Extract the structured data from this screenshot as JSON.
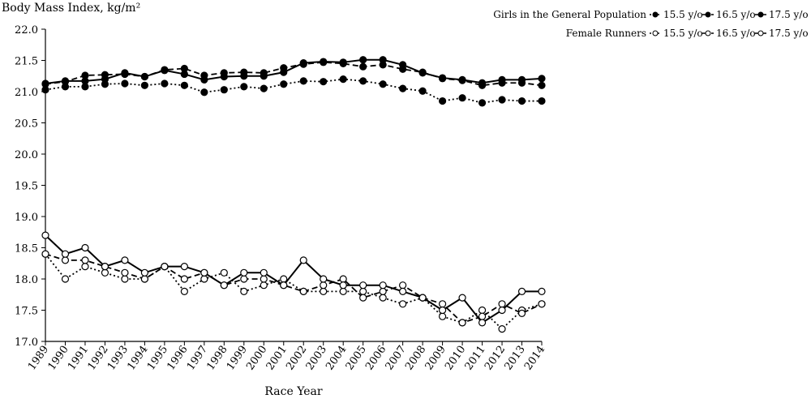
{
  "chart_data": {
    "type": "line",
    "title": "",
    "ylabel": "Body Mass Index, kg/m²",
    "xlabel": "Race Year",
    "ylim": [
      17.0,
      22.0
    ],
    "yticks": [
      "17.0",
      "17.5",
      "18.0",
      "18.5",
      "19.0",
      "19.5",
      "20.0",
      "20.5",
      "21.0",
      "21.5",
      "22.0"
    ],
    "x": [
      "1989",
      "1990",
      "1991",
      "1992",
      "1993",
      "1994",
      "1995",
      "1996",
      "1997",
      "1998",
      "1999",
      "2000",
      "2001",
      "2002",
      "2003",
      "2004",
      "2005",
      "2006",
      "2007",
      "2008",
      "2009",
      "2010",
      "2011",
      "2012",
      "2013",
      "2014"
    ],
    "grid": false,
    "legend_position": "top-right",
    "legend_groups": [
      "Girls in the General Population",
      "Female Runners"
    ],
    "legend_items": [
      "15.5 y/o",
      "16.5 y/o",
      "17.5 y/o"
    ],
    "series": [
      {
        "group": "Girls in the General Population",
        "age": "15.5 y/o",
        "style": "dotted",
        "marker": "filled",
        "values": [
          21.03,
          21.08,
          21.08,
          21.12,
          21.13,
          21.1,
          21.13,
          21.1,
          20.99,
          21.03,
          21.08,
          21.05,
          21.12,
          21.17,
          21.16,
          21.2,
          21.17,
          21.12,
          21.05,
          21.01,
          20.85,
          20.9,
          20.82,
          20.87,
          20.85,
          20.85
        ]
      },
      {
        "group": "Girls in the General Population",
        "age": "16.5 y/o",
        "style": "dashed",
        "marker": "filled",
        "values": [
          21.12,
          21.16,
          21.26,
          21.27,
          21.28,
          21.24,
          21.35,
          21.37,
          21.26,
          21.3,
          21.31,
          21.3,
          21.38,
          21.44,
          21.47,
          21.45,
          21.4,
          21.43,
          21.36,
          21.31,
          21.21,
          21.18,
          21.1,
          21.14,
          21.14,
          21.1
        ]
      },
      {
        "group": "Girls in the General Population",
        "age": "17.5 y/o",
        "style": "solid",
        "marker": "filled",
        "values": [
          21.13,
          21.17,
          21.17,
          21.2,
          21.3,
          21.24,
          21.34,
          21.28,
          21.19,
          21.24,
          21.25,
          21.25,
          21.31,
          21.46,
          21.48,
          21.47,
          21.51,
          21.51,
          21.43,
          21.3,
          21.22,
          21.19,
          21.14,
          21.19,
          21.19,
          21.21
        ]
      },
      {
        "group": "Female Runners",
        "age": "15.5 y/o",
        "style": "dotted",
        "marker": "open",
        "values": [
          18.4,
          18.0,
          18.2,
          18.1,
          18.0,
          18.0,
          18.2,
          17.8,
          18.0,
          18.1,
          17.8,
          17.9,
          18.0,
          17.8,
          17.8,
          17.8,
          17.8,
          17.7,
          17.6,
          17.7,
          17.4,
          17.3,
          17.5,
          17.2,
          17.5,
          17.6
        ]
      },
      {
        "group": "Female Runners",
        "age": "16.5 y/o",
        "style": "dashed",
        "marker": "open",
        "values": [
          18.4,
          18.3,
          18.3,
          18.2,
          18.1,
          18.0,
          18.2,
          18.0,
          18.1,
          17.9,
          18.0,
          18.0,
          17.9,
          17.8,
          17.9,
          18.0,
          17.7,
          17.8,
          17.9,
          17.7,
          17.6,
          17.3,
          17.4,
          17.6,
          17.45,
          17.6
        ]
      },
      {
        "group": "Female Runners",
        "age": "17.5 y/o",
        "style": "solid",
        "marker": "open",
        "values": [
          18.7,
          18.4,
          18.5,
          18.2,
          18.3,
          18.1,
          18.2,
          18.2,
          18.1,
          17.9,
          18.1,
          18.1,
          17.9,
          18.3,
          18.0,
          17.9,
          17.9,
          17.9,
          17.8,
          17.7,
          17.5,
          17.7,
          17.3,
          17.5,
          17.8,
          17.8
        ]
      }
    ]
  }
}
